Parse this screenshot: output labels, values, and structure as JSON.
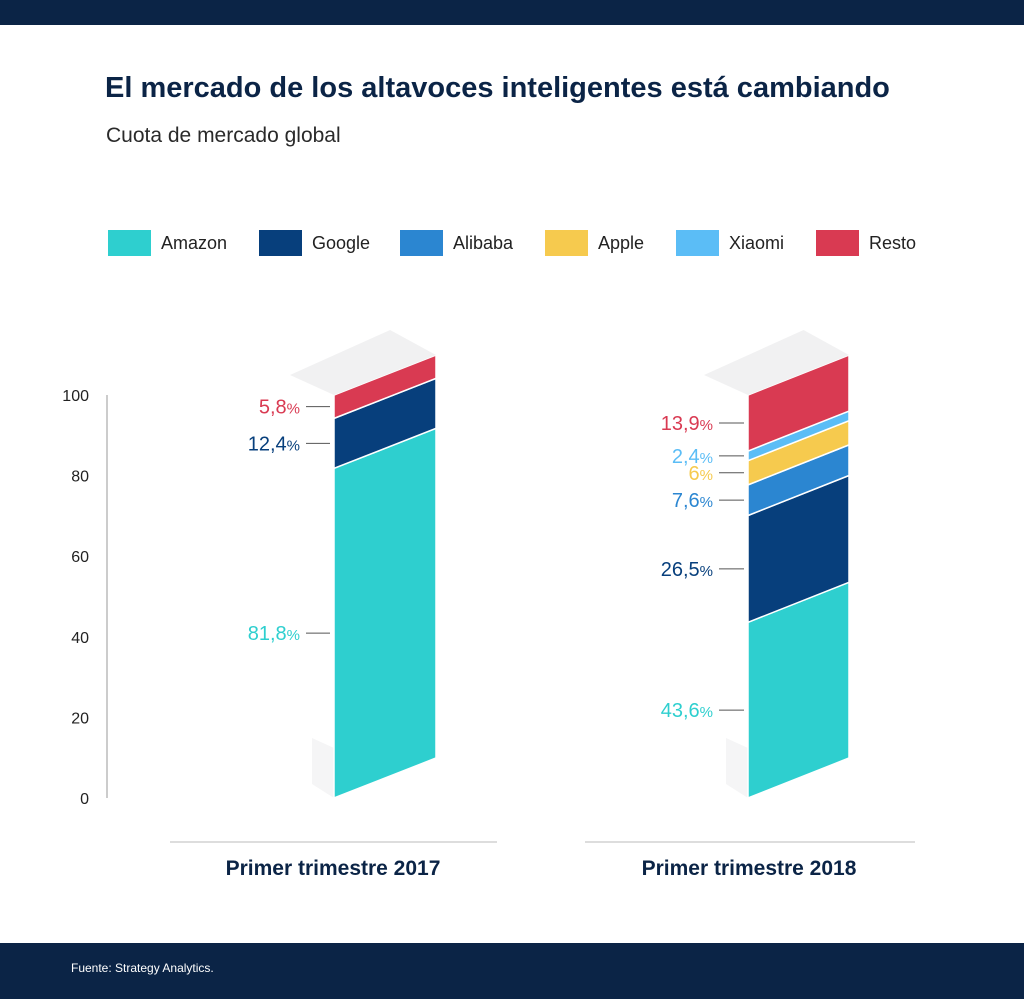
{
  "title": "El mercado de los altavoces inteligentes está cambiando",
  "subtitle": "Cuota de mercado global",
  "source": "Fuente: Strategy Analytics.",
  "colors": {
    "Amazon": "#2ecfcf",
    "Google": "#073f7c",
    "Alibaba": "#2b86d1",
    "Apple": "#f6ca4e",
    "Xiaomi": "#5bbdf6",
    "Resto": "#d93a52"
  },
  "chart_data": {
    "type": "bar",
    "stacked": true,
    "categories": [
      "Primer trimestre 2017",
      "Primer trimestre 2018"
    ],
    "series": [
      {
        "name": "Amazon",
        "values": [
          81.8,
          43.6
        ],
        "labels": [
          "81,8",
          "43,6"
        ]
      },
      {
        "name": "Google",
        "values": [
          12.4,
          26.5
        ],
        "labels": [
          "12,4",
          "26,5"
        ]
      },
      {
        "name": "Alibaba",
        "values": [
          0,
          7.6
        ],
        "labels": [
          "",
          "7,6"
        ]
      },
      {
        "name": "Apple",
        "values": [
          0,
          6
        ],
        "labels": [
          "",
          "6"
        ]
      },
      {
        "name": "Xiaomi",
        "values": [
          0,
          2.4
        ],
        "labels": [
          "",
          "2,4"
        ]
      },
      {
        "name": "Resto",
        "values": [
          5.8,
          13.9
        ],
        "labels": [
          "5,8",
          "13,9"
        ]
      }
    ],
    "unit": "%",
    "ylim": [
      0,
      100
    ],
    "yticks": [
      0,
      20,
      40,
      60,
      80,
      100
    ],
    "legend": "top",
    "grid": false
  }
}
